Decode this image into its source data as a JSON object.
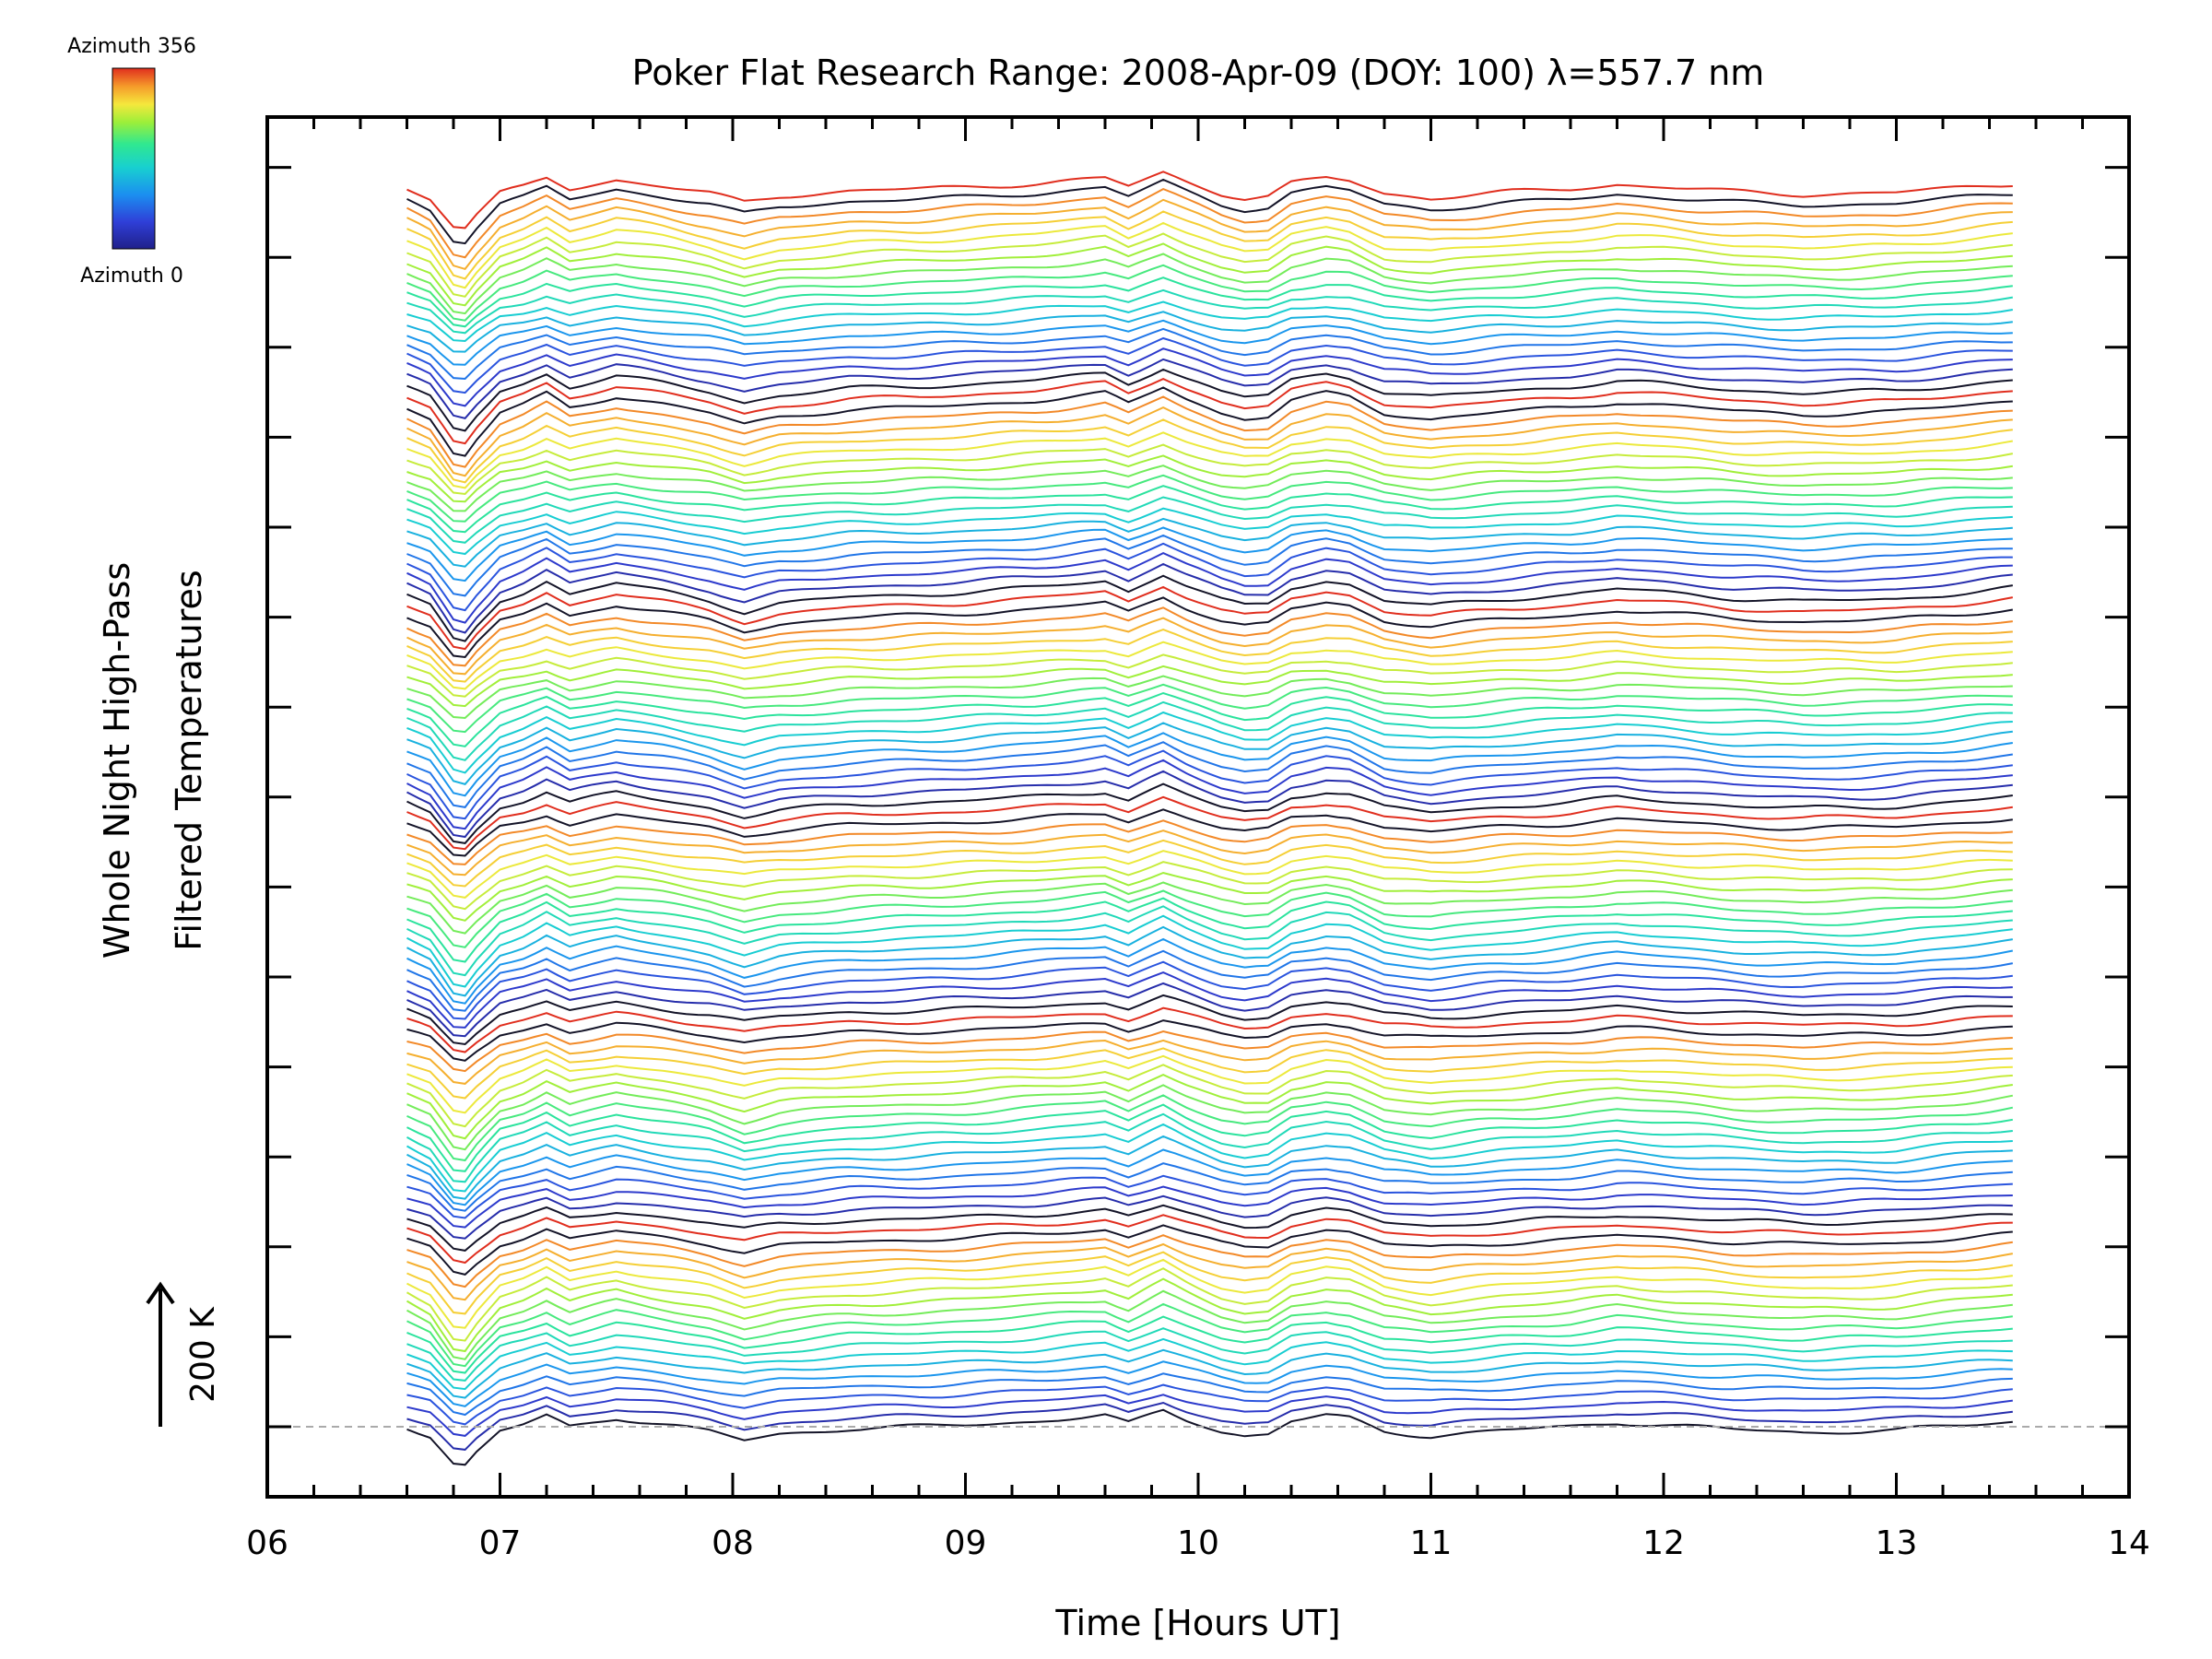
{
  "chart_data": {
    "type": "line",
    "title": "Poker Flat Research Range: 2008-Apr-09 (DOY: 100) λ=557.7 nm",
    "xlabel": "Time [Hours UT]",
    "ylabel_line1": "Whole Night High-Pass",
    "ylabel_line2": "Filtered Temperatures",
    "scale_label": "200 K",
    "xlim": [
      6,
      14
    ],
    "x_ticks": [
      "06",
      "07",
      "08",
      "09",
      "10",
      "11",
      "12",
      "13",
      "14"
    ],
    "x_start": 6.6,
    "x_end": 13.5,
    "n_traces": 120,
    "group_size": 20,
    "colorbar": {
      "top_label": "Azimuth 356",
      "bottom_label": "Azimuth 0",
      "colors": [
        "#20208a",
        "#2f3fd8",
        "#1b8ff0",
        "#18d0d0",
        "#30e890",
        "#9cef3a",
        "#f5e83c",
        "#f59a2a",
        "#e02e1e"
      ]
    },
    "base_profile": [
      [
        6.6,
        0
      ],
      [
        6.7,
        -10
      ],
      [
        6.8,
        -40
      ],
      [
        6.85,
        -42
      ],
      [
        6.9,
        -28
      ],
      [
        7.0,
        -5
      ],
      [
        7.1,
        2
      ],
      [
        7.2,
        12
      ],
      [
        7.3,
        0
      ],
      [
        7.5,
        10
      ],
      [
        7.7,
        3
      ],
      [
        7.9,
        -5
      ],
      [
        8.05,
        -15
      ],
      [
        8.2,
        -8
      ],
      [
        8.5,
        -2
      ],
      [
        8.8,
        0
      ],
      [
        9.0,
        2
      ],
      [
        9.3,
        6
      ],
      [
        9.6,
        12
      ],
      [
        9.7,
        3
      ],
      [
        9.85,
        18
      ],
      [
        9.95,
        8
      ],
      [
        10.1,
        -5
      ],
      [
        10.2,
        -10
      ],
      [
        10.3,
        -8
      ],
      [
        10.4,
        6
      ],
      [
        10.55,
        12
      ],
      [
        10.65,
        9
      ],
      [
        10.8,
        -5
      ],
      [
        11.0,
        -10
      ],
      [
        11.3,
        -4
      ],
      [
        11.6,
        0
      ],
      [
        11.8,
        5
      ],
      [
        12.0,
        2
      ],
      [
        12.3,
        -3
      ],
      [
        12.6,
        -6
      ],
      [
        13.0,
        -4
      ],
      [
        13.3,
        2
      ],
      [
        13.5,
        6
      ]
    ]
  }
}
